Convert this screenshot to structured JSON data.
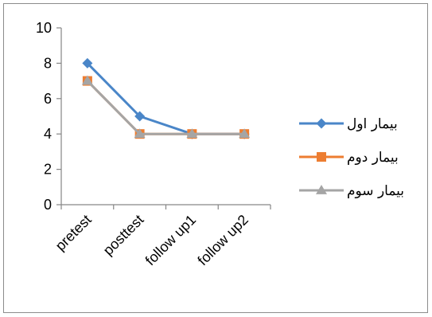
{
  "chart_data": {
    "type": "line",
    "categories": [
      "pretest",
      "posttest",
      "follow up1",
      "follow up2"
    ],
    "ylim": [
      0,
      10
    ],
    "yticks": [
      0,
      2,
      4,
      6,
      8,
      10
    ],
    "grid": false,
    "legend_position": "right",
    "series": [
      {
        "name": "بیمار اول",
        "values": [
          8,
          5,
          4,
          4
        ],
        "color": "#4a86c8",
        "marker": "diamond"
      },
      {
        "name": "بیمار دوم",
        "values": [
          7,
          4,
          4,
          4
        ],
        "color": "#ed7d31",
        "marker": "square"
      },
      {
        "name": "بیمار سوم",
        "values": [
          7,
          4,
          4,
          4
        ],
        "color": "#a5a5a5",
        "marker": "triangle"
      }
    ]
  }
}
